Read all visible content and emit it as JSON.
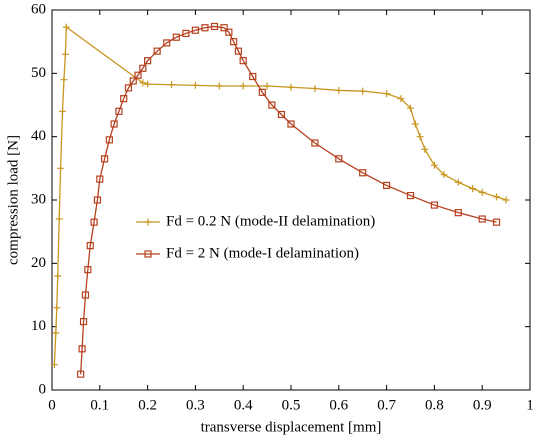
{
  "chart_data": {
    "type": "line",
    "x_label": "transverse displacement [mm]",
    "y_label": "compression load [N]",
    "xlim": [
      0,
      1
    ],
    "ylim": [
      0,
      60
    ],
    "xticks": [
      0,
      0.1,
      0.2,
      0.3,
      0.4,
      0.5,
      0.6,
      0.7,
      0.8,
      0.9,
      1
    ],
    "yticks": [
      0,
      10,
      20,
      30,
      40,
      50,
      60
    ],
    "series": [
      {
        "name": "Fd = 0.2 N (mode-II delamination)",
        "color": "#c8961e",
        "marker": "plus",
        "x": [
          0.005,
          0.008,
          0.01,
          0.012,
          0.015,
          0.018,
          0.022,
          0.025,
          0.028,
          0.03,
          0.19,
          0.2,
          0.25,
          0.3,
          0.35,
          0.4,
          0.45,
          0.5,
          0.55,
          0.6,
          0.65,
          0.7,
          0.73,
          0.75,
          0.76,
          0.77,
          0.78,
          0.8,
          0.82,
          0.85,
          0.88,
          0.9,
          0.93,
          0.95
        ],
        "values": [
          4,
          9,
          13,
          18,
          27,
          35,
          44,
          49,
          53,
          57.3,
          48.5,
          48.3,
          48.2,
          48.1,
          48,
          48,
          48,
          47.8,
          47.6,
          47.3,
          47.2,
          46.8,
          46,
          44.5,
          42,
          40,
          38,
          35.5,
          34,
          32.8,
          31.8,
          31.2,
          30.5,
          30
        ]
      },
      {
        "name": "Fd = 2 N (mode-I delamination)",
        "color": "#b5401e",
        "marker": "square",
        "x": [
          0.06,
          0.063,
          0.066,
          0.07,
          0.075,
          0.08,
          0.088,
          0.095,
          0.1,
          0.11,
          0.12,
          0.13,
          0.14,
          0.15,
          0.16,
          0.17,
          0.18,
          0.19,
          0.2,
          0.22,
          0.24,
          0.26,
          0.28,
          0.3,
          0.32,
          0.34,
          0.36,
          0.37,
          0.38,
          0.39,
          0.4,
          0.42,
          0.44,
          0.46,
          0.48,
          0.5,
          0.55,
          0.6,
          0.65,
          0.7,
          0.75,
          0.8,
          0.85,
          0.9,
          0.93
        ],
        "values": [
          2.5,
          6.5,
          10.8,
          15,
          19,
          22.8,
          26.5,
          30,
          33.3,
          36.5,
          39.5,
          42,
          44,
          46,
          47.7,
          48.8,
          49.7,
          50.8,
          52,
          53.5,
          54.8,
          55.7,
          56.3,
          56.8,
          57.2,
          57.4,
          57.2,
          56.5,
          55,
          53.5,
          52,
          49.5,
          47,
          45,
          43.5,
          42,
          39,
          36.5,
          34.3,
          32.3,
          30.7,
          29.2,
          28,
          27,
          26.5
        ]
      }
    ]
  }
}
